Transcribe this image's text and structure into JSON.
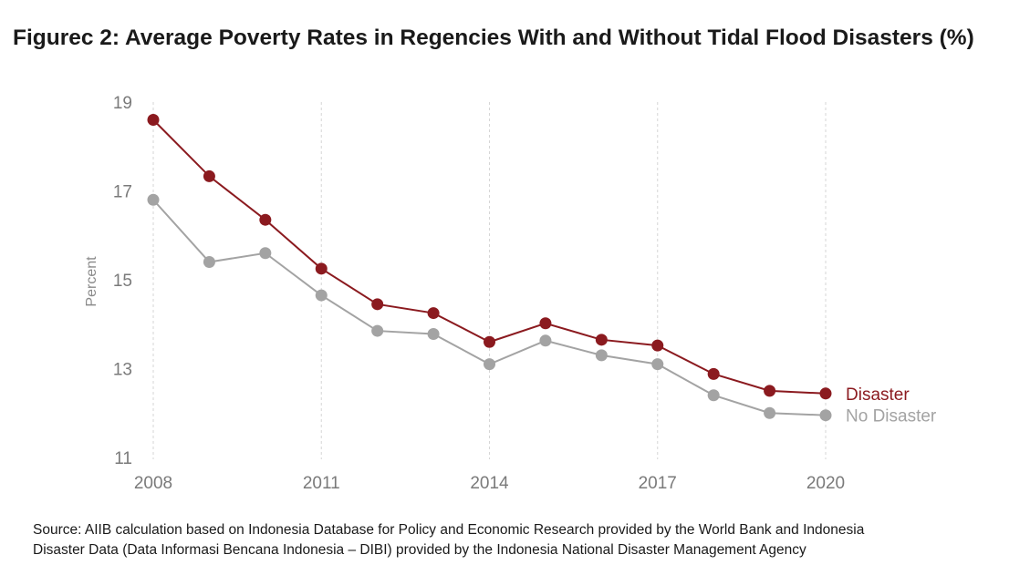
{
  "title": "Figurec 2: Average Poverty Rates in Regencies With and Without Tidal Flood Disasters (%)",
  "source_lines": [
    "Source: AIIB calculation based on Indonesia Database for Policy and Economic Research provided by the World Bank and Indonesia",
    "Disaster Data (Data Informasi Bencana Indonesia – DIBI) provided by the Indonesia National Disaster Management Agency"
  ],
  "chart_data": {
    "type": "line",
    "title": "Figurec 2: Average Poverty Rates in Regencies With and Without Tidal Flood Disasters (%)",
    "xlabel": "",
    "ylabel": "Percent",
    "x": [
      2008,
      2009,
      2010,
      2011,
      2012,
      2013,
      2014,
      2015,
      2016,
      2017,
      2018,
      2019,
      2020
    ],
    "xticks": [
      2008,
      2011,
      2014,
      2017,
      2020
    ],
    "yticks": [
      11,
      13,
      15,
      17,
      19
    ],
    "ylim": [
      11,
      19
    ],
    "xlim": [
      2008,
      2020
    ],
    "grid": "vertical dashed at x ticks",
    "legend": "direct labels at line ends",
    "series": [
      {
        "name": "Disaster",
        "color": "#8b1a1f",
        "values": [
          18.6,
          17.33,
          16.35,
          15.25,
          14.45,
          14.25,
          13.6,
          14.02,
          13.65,
          13.52,
          12.88,
          12.5,
          12.44
        ]
      },
      {
        "name": "No Disaster",
        "color": "#a3a3a3",
        "values": [
          16.8,
          15.4,
          15.6,
          14.65,
          13.85,
          13.78,
          13.1,
          13.63,
          13.3,
          13.1,
          12.4,
          12.0,
          11.95
        ]
      }
    ]
  }
}
